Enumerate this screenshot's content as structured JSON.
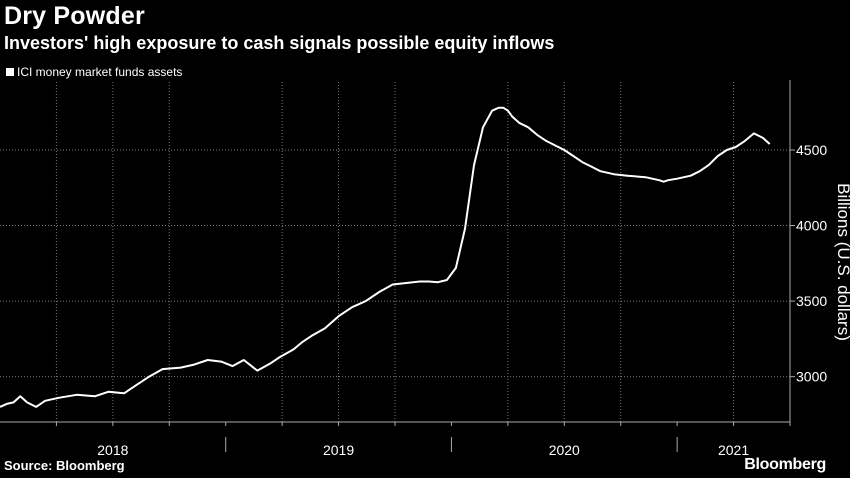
{
  "header": {
    "title": "Dry Powder",
    "subtitle": "Investors' high exposure to cash signals possible equity inflows"
  },
  "footer": {
    "source": "Source: Bloomberg",
    "brand": "Bloomberg"
  },
  "colors": {
    "background": "#000000",
    "line": "#ffffff",
    "grid": "#777777"
  },
  "chart_data": {
    "type": "line",
    "title": "Dry Powder",
    "subtitle": "Investors' high exposure to cash signals possible equity inflows",
    "legend": [
      "ICI money market funds assets"
    ],
    "legend_position": "top-left",
    "xlabel": "",
    "ylabel": "Billions (U.S. dollars)",
    "y_axis_side": "right",
    "ylim": [
      2700,
      4950
    ],
    "xlim": [
      2018.0,
      2021.5
    ],
    "yticks": [
      3000,
      3500,
      4000,
      4500
    ],
    "ytick_labels": [
      "3000",
      "3500",
      "4000",
      "4500"
    ],
    "xticks": [
      {
        "label": "2018",
        "value": 2018.5
      },
      {
        "label": "2019",
        "value": 2019.5
      },
      {
        "label": "2020",
        "value": 2020.5
      },
      {
        "label": "2021",
        "value": 2021.25
      }
    ],
    "x_year_boundaries": [
      2019.0,
      2020.0,
      2021.0
    ],
    "grid": true,
    "series": [
      {
        "name": "ICI money market funds assets",
        "x": [
          2018.0,
          2018.03,
          2018.06,
          2018.09,
          2018.12,
          2018.16,
          2018.2,
          2018.26,
          2018.34,
          2018.42,
          2018.48,
          2018.55,
          2018.6,
          2018.66,
          2018.72,
          2018.8,
          2018.86,
          2018.92,
          2018.98,
          2019.03,
          2019.08,
          2019.14,
          2019.2,
          2019.24,
          2019.3,
          2019.34,
          2019.38,
          2019.44,
          2019.5,
          2019.56,
          2019.62,
          2019.68,
          2019.74,
          2019.8,
          2019.86,
          2019.9,
          2019.94,
          2019.98,
          2020.02,
          2020.06,
          2020.1,
          2020.14,
          2020.18,
          2020.21,
          2020.23,
          2020.25,
          2020.27,
          2020.3,
          2020.34,
          2020.38,
          2020.42,
          2020.46,
          2020.5,
          2020.54,
          2020.58,
          2020.62,
          2020.66,
          2020.72,
          2020.78,
          2020.86,
          2020.92,
          2020.94,
          2020.96,
          2021.0,
          2021.06,
          2021.1,
          2021.14,
          2021.18,
          2021.22,
          2021.26,
          2021.3,
          2021.34,
          2021.38,
          2021.41
        ],
        "values": [
          2800,
          2820,
          2830,
          2870,
          2830,
          2800,
          2840,
          2860,
          2880,
          2870,
          2900,
          2890,
          2940,
          3000,
          3050,
          3060,
          3080,
          3110,
          3100,
          3070,
          3110,
          3040,
          3090,
          3130,
          3180,
          3230,
          3270,
          3320,
          3400,
          3460,
          3500,
          3560,
          3610,
          3620,
          3630,
          3630,
          3625,
          3640,
          3720,
          3980,
          4400,
          4650,
          4760,
          4780,
          4780,
          4760,
          4720,
          4680,
          4650,
          4600,
          4560,
          4530,
          4500,
          4460,
          4420,
          4390,
          4360,
          4340,
          4330,
          4320,
          4300,
          4290,
          4300,
          4310,
          4330,
          4360,
          4400,
          4460,
          4500,
          4520,
          4560,
          4610,
          4580,
          4540
        ]
      }
    ]
  }
}
